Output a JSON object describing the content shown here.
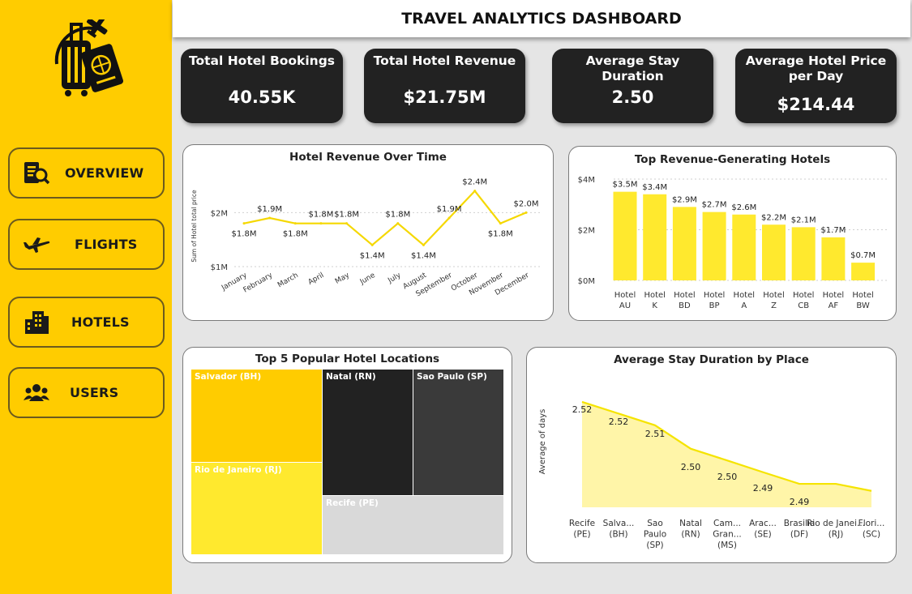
{
  "header": {
    "title": "TRAVEL ANALYTICS DASHBOARD"
  },
  "sidebar": {
    "items": [
      {
        "label": "OVERVIEW",
        "icon": "search-document-icon"
      },
      {
        "label": "FLIGHTS",
        "icon": "airplane-icon"
      },
      {
        "label": "HOTELS",
        "icon": "building-icon"
      },
      {
        "label": "USERS",
        "icon": "users-icon"
      }
    ],
    "logo_icon": "luggage-passport-plane-icon"
  },
  "kpis": [
    {
      "label": "Total Hotel Bookings",
      "value": "40.55K"
    },
    {
      "label": "Total Hotel Revenue",
      "value": "$21.75M"
    },
    {
      "label": "Average Stay Duration",
      "value": "2.50"
    },
    {
      "label": "Average Hotel Price per Day",
      "value": "$214.44"
    }
  ],
  "colors": {
    "accent": "#ffcc00",
    "dark": "#222222",
    "line": "#f5d800",
    "bar": "#ffe92e"
  },
  "chart_data": [
    {
      "type": "line",
      "title": "Hotel Revenue Over Time",
      "ylabel": "Sum of Hotel total price",
      "ytick_labels": [
        "$1M",
        "$2M"
      ],
      "ylim": [
        1.0,
        2.5
      ],
      "categories": [
        "January",
        "February",
        "March",
        "April",
        "May",
        "June",
        "July",
        "August",
        "September",
        "October",
        "November",
        "December"
      ],
      "values": [
        1.8,
        1.9,
        1.8,
        1.8,
        1.8,
        1.4,
        1.8,
        1.4,
        1.9,
        2.4,
        1.8,
        2.0
      ],
      "labels": [
        "$1.8M",
        "$1.9M",
        "$1.8M",
        "$1.8M",
        "$1.8M",
        "$1.4M",
        "$1.8M",
        "$1.4M",
        "$1.9M",
        "$2.4M",
        "$1.8M",
        "$2.0M"
      ]
    },
    {
      "type": "bar",
      "title": "Top Revenue-Generating Hotels",
      "ytick_labels": [
        "$0M",
        "$2M",
        "$4M"
      ],
      "ylim": [
        0,
        4
      ],
      "categories": [
        "Hotel AU",
        "Hotel K",
        "Hotel BD",
        "Hotel BP",
        "Hotel A",
        "Hotel Z",
        "Hotel CB",
        "Hotel AF",
        "Hotel BW"
      ],
      "values": [
        3.5,
        3.4,
        2.9,
        2.7,
        2.6,
        2.2,
        2.1,
        1.7,
        0.7
      ],
      "labels": [
        "$3.5M",
        "$3.4M",
        "$2.9M",
        "$2.7M",
        "$2.6M",
        "$2.2M",
        "$2.1M",
        "$1.7M",
        "$0.7M"
      ]
    },
    {
      "type": "treemap",
      "title": "Top 5 Popular Hotel Locations",
      "categories": [
        "Salvador (BH)",
        "Natal (RN)",
        "Sao Paulo (SP)",
        "Rio de Janeiro (RJ)",
        "Recife (PE)"
      ]
    },
    {
      "type": "area",
      "title": "Average Stay Duration by Place",
      "ylabel": "Average of days",
      "categories": [
        "Recife (PE)",
        "Salva... (BH)",
        "Sao Paulo (SP)",
        "Natal (RN)",
        "Cam... Gran... (MS)",
        "Arac... (SE)",
        "Brasilia (DF)",
        "Rio de Janei... (RJ)",
        "Flori... (SC)"
      ],
      "values": [
        2.525,
        2.52,
        2.515,
        2.505,
        2.5,
        2.495,
        2.49,
        2.49,
        2.487
      ],
      "labels": [
        "2.52",
        "2.52",
        "2.51",
        "2.50",
        "2.50",
        "2.49",
        "2.49"
      ]
    }
  ]
}
